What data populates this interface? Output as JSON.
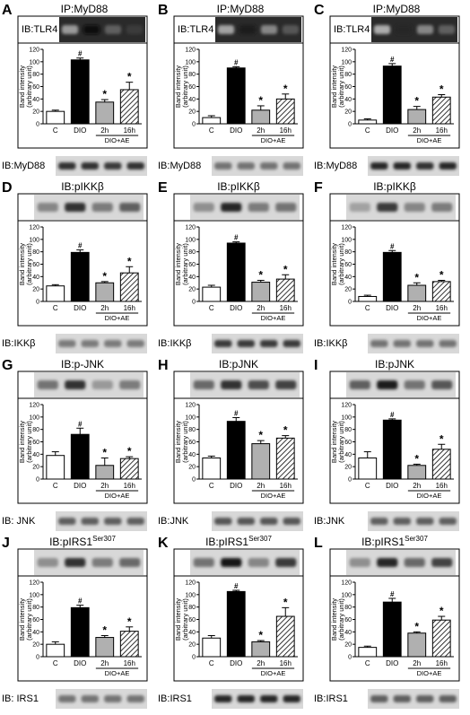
{
  "figure": {
    "categories": [
      "C",
      "DIO",
      "2h",
      "16h"
    ],
    "group_label": "DIO+AE",
    "ylabel_line1": "Band intensity",
    "ylabel_line2": "(arbitrary unit)",
    "yticks": [
      "0",
      "20",
      "40",
      "60",
      "80",
      "100",
      "120"
    ],
    "colors": {
      "C": "#ffffff",
      "DIO": "#000000",
      "2h": "#b0b0b0",
      "16h": "hatch"
    }
  },
  "chart_data": [
    {
      "type": "bar",
      "letter": "A",
      "top_label": "IP:MyD88",
      "left_blot": "IB:TLR4",
      "bottom_blot": "IB:MyD88",
      "categories": [
        "C",
        "DIO",
        "2h",
        "16h"
      ],
      "values": [
        20,
        103,
        35,
        55
      ],
      "errors": [
        2,
        3,
        4,
        12
      ],
      "marks": [
        "",
        "#",
        "*",
        "*"
      ],
      "ylim": [
        0,
        120
      ]
    },
    {
      "type": "bar",
      "letter": "B",
      "top_label": "IP:MyD88",
      "left_blot": "IB:TLR4",
      "bottom_blot": "IB:MyD88",
      "categories": [
        "C",
        "DIO",
        "2h",
        "16h"
      ],
      "values": [
        10,
        90,
        22,
        40
      ],
      "errors": [
        3,
        2,
        7,
        8
      ],
      "marks": [
        "",
        "#",
        "*",
        "*"
      ],
      "ylim": [
        0,
        120
      ]
    },
    {
      "type": "bar",
      "letter": "C",
      "top_label": "IP:MyD88",
      "left_blot": "IB:TLR4",
      "bottom_blot": "IB:MyD88",
      "categories": [
        "C",
        "DIO",
        "2h",
        "16h"
      ],
      "values": [
        6,
        93,
        23,
        43
      ],
      "errors": [
        2,
        4,
        5,
        4
      ],
      "marks": [
        "",
        "#",
        "*",
        "*"
      ],
      "ylim": [
        0,
        120
      ]
    },
    {
      "type": "bar",
      "letter": "D",
      "top_label": "IB:pIKKβ",
      "left_blot": "",
      "bottom_blot": "IB:IKKβ",
      "categories": [
        "C",
        "DIO",
        "2h",
        "16h"
      ],
      "values": [
        25,
        79,
        30,
        46
      ],
      "errors": [
        2,
        4,
        2,
        10
      ],
      "marks": [
        "",
        "#",
        "*",
        "*"
      ],
      "ylim": [
        0,
        120
      ]
    },
    {
      "type": "bar",
      "letter": "E",
      "top_label": "IB:pIKKβ",
      "left_blot": "",
      "bottom_blot": "IB:IKKβ",
      "categories": [
        "C",
        "DIO",
        "2h",
        "16h"
      ],
      "values": [
        23,
        94,
        31,
        36
      ],
      "errors": [
        3,
        2,
        3,
        7
      ],
      "marks": [
        "",
        "#",
        "*",
        "*"
      ],
      "ylim": [
        0,
        120
      ]
    },
    {
      "type": "bar",
      "letter": "F",
      "top_label": "IB:pIKKβ",
      "left_blot": "",
      "bottom_blot": "IB:IKKβ",
      "categories": [
        "C",
        "DIO",
        "2h",
        "16h"
      ],
      "values": [
        8,
        79,
        26,
        32
      ],
      "errors": [
        2,
        3,
        4,
        2
      ],
      "marks": [
        "",
        "#",
        "*",
        "*"
      ],
      "ylim": [
        0,
        120
      ]
    },
    {
      "type": "bar",
      "letter": "G",
      "top_label": "IB:p-JNK",
      "left_blot": "",
      "bottom_blot": "IB: JNK",
      "categories": [
        "C",
        "DIO",
        "2h",
        "16h"
      ],
      "values": [
        38,
        72,
        22,
        33
      ],
      "errors": [
        6,
        10,
        12,
        3
      ],
      "marks": [
        "",
        "#",
        "*",
        "*"
      ],
      "ylim": [
        0,
        120
      ]
    },
    {
      "type": "bar",
      "letter": "H",
      "top_label": "IB:pJNK",
      "left_blot": "",
      "bottom_blot": "IB:JNK",
      "categories": [
        "C",
        "DIO",
        "2h",
        "16h"
      ],
      "values": [
        34,
        93,
        57,
        66
      ],
      "errors": [
        3,
        6,
        5,
        4
      ],
      "marks": [
        "",
        "#",
        "*",
        "*"
      ],
      "ylim": [
        0,
        120
      ]
    },
    {
      "type": "bar",
      "letter": "I",
      "top_label": "IB:pJNK",
      "left_blot": "",
      "bottom_blot": "IB:JNK",
      "categories": [
        "C",
        "DIO",
        "2h",
        "16h"
      ],
      "values": [
        34,
        95,
        22,
        48
      ],
      "errors": [
        10,
        2,
        2,
        8
      ],
      "marks": [
        "",
        "#",
        "*",
        "*"
      ],
      "ylim": [
        0,
        120
      ]
    },
    {
      "type": "bar",
      "letter": "J",
      "top_label": "IB:pIRS1",
      "top_sup": "Ser307",
      "left_blot": "",
      "bottom_blot": "IB: IRS1",
      "categories": [
        "C",
        "DIO",
        "2h",
        "16h"
      ],
      "values": [
        20,
        79,
        31,
        41
      ],
      "errors": [
        4,
        4,
        3,
        7
      ],
      "marks": [
        "",
        "#",
        "*",
        "*"
      ],
      "ylim": [
        0,
        120
      ]
    },
    {
      "type": "bar",
      "letter": "K",
      "top_label": "IB:pIRS1",
      "top_sup": "Ser307",
      "left_blot": "",
      "bottom_blot": "IB:IRS1",
      "categories": [
        "C",
        "DIO",
        "2h",
        "16h"
      ],
      "values": [
        30,
        105,
        24,
        65
      ],
      "errors": [
        4,
        2,
        2,
        14
      ],
      "marks": [
        "",
        "#",
        "*",
        "*"
      ],
      "ylim": [
        0,
        120
      ]
    },
    {
      "type": "bar",
      "letter": "L",
      "top_label": "IB:pIRS1",
      "top_sup": "Ser307",
      "left_blot": "",
      "bottom_blot": "IB:IRS1",
      "categories": [
        "C",
        "DIO",
        "2h",
        "16h"
      ],
      "values": [
        15,
        88,
        38,
        59
      ],
      "errors": [
        2,
        6,
        2,
        6
      ],
      "marks": [
        "",
        "#",
        "*",
        "*"
      ],
      "ylim": [
        0,
        120
      ]
    }
  ]
}
